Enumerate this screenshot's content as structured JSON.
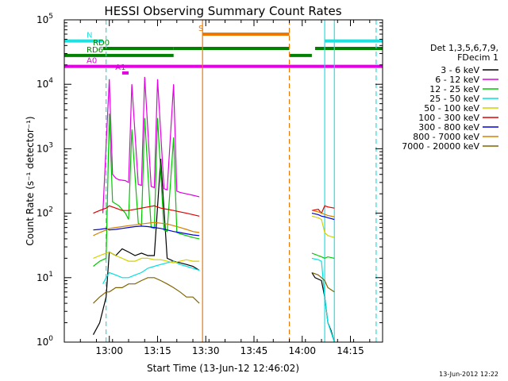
{
  "chart_data": {
    "type": "line",
    "title": "HESSI Observing Summary Count Rates",
    "xlabel": "Start Time (13-Jun-12 12:46:02)",
    "ylabel": "Count Rate (s⁻¹ detector⁻¹)",
    "xlim": [
      "12:46",
      "14:25"
    ],
    "ylim": [
      1,
      100000
    ],
    "yscale": "log",
    "grid": false,
    "x_ticks": [
      "13:00",
      "13:15",
      "13:30",
      "13:45",
      "14:00",
      "14:15"
    ],
    "y_ticks": [
      {
        "base": "10",
        "exp": "0",
        "value": 1
      },
      {
        "base": "10",
        "exp": "1",
        "value": 10
      },
      {
        "base": "10",
        "exp": "2",
        "value": 100
      },
      {
        "base": "10",
        "exp": "3",
        "value": 1000
      },
      {
        "base": "10",
        "exp": "4",
        "value": 10000
      },
      {
        "base": "10",
        "exp": "5",
        "value": 100000
      }
    ],
    "legend_position": "right",
    "legend_header": [
      "Det 1,3,5,6,7,9,",
      "FDecim 1"
    ],
    "series": [
      {
        "name": "3 - 6 keV",
        "color": "#000000",
        "x": [
          "12:55",
          "12:57",
          "12:59",
          "13:00",
          "13:02",
          "13:04",
          "13:06",
          "13:08",
          "13:10",
          "13:12",
          "13:14",
          "13:16",
          "13:18",
          "13:20",
          "13:22",
          "13:24",
          "13:26",
          "13:28",
          "14:03",
          "14:04",
          "14:06",
          "14:07",
          "14:08",
          "14:09",
          "14:10"
        ],
        "y": [
          1.3,
          2,
          5,
          25,
          22,
          28,
          25,
          22,
          24,
          22,
          22,
          700,
          20,
          18,
          17,
          16,
          15,
          13,
          12,
          10,
          9,
          5,
          2,
          1.5,
          1
        ]
      },
      {
        "name": "6 - 12 keV",
        "color": "#e000e0",
        "x": [
          "12:58",
          "13:00",
          "13:01",
          "13:02",
          "13:03",
          "13:05",
          "13:06",
          "13:07",
          "13:09",
          "13:10",
          "13:11",
          "13:13",
          "13:14",
          "13:15",
          "13:17",
          "13:18",
          "13:20",
          "13:21",
          "13:22",
          "13:24",
          "13:26",
          "13:28"
        ],
        "y": [
          100,
          12000,
          400,
          350,
          330,
          320,
          300,
          10000,
          280,
          270,
          13000,
          260,
          250,
          12000,
          240,
          230,
          10000,
          220,
          210,
          200,
          190,
          180
        ]
      },
      {
        "name": "12 - 25 keV",
        "color": "#00c800",
        "x": [
          "12:55",
          "12:57",
          "12:59",
          "13:00",
          "13:01",
          "13:03",
          "13:05",
          "13:06",
          "13:07",
          "13:09",
          "13:10",
          "13:11",
          "13:13",
          "13:14",
          "13:15",
          "13:17",
          "13:18",
          "13:20",
          "13:21",
          "13:22",
          "13:24",
          "13:26",
          "13:28",
          "14:03",
          "14:05",
          "14:06",
          "14:07",
          "14:08",
          "14:10"
        ],
        "y": [
          15,
          18,
          20,
          3500,
          150,
          130,
          100,
          80,
          2000,
          70,
          65,
          3000,
          60,
          58,
          3000,
          55,
          52,
          1500,
          50,
          48,
          45,
          42,
          40,
          24,
          22,
          21,
          20,
          21,
          20
        ]
      },
      {
        "name": "25 - 50 keV",
        "color": "#00e0e0",
        "x": [
          "12:58",
          "12:59",
          "13:00",
          "13:02",
          "13:04",
          "13:06",
          "13:08",
          "13:10",
          "13:12",
          "13:14",
          "13:16",
          "13:18",
          "13:20",
          "13:22",
          "13:24",
          "13:26",
          "13:28",
          "14:03",
          "14:05",
          "14:06",
          "14:07",
          "14:08",
          "14:10"
        ],
        "y": [
          8,
          10,
          12,
          11,
          10,
          10,
          11,
          12,
          14,
          15,
          16,
          17,
          18,
          16,
          15,
          14,
          13,
          20,
          19,
          18,
          5,
          2,
          1
        ]
      },
      {
        "name": "50 - 100 keV",
        "color": "#d2d200",
        "x": [
          "12:55",
          "12:57",
          "12:59",
          "13:00",
          "13:02",
          "13:04",
          "13:06",
          "13:08",
          "13:10",
          "13:12",
          "13:14",
          "13:16",
          "13:18",
          "13:20",
          "13:22",
          "13:24",
          "13:26",
          "13:28",
          "14:03",
          "14:05",
          "14:06",
          "14:07",
          "14:08",
          "14:10"
        ],
        "y": [
          20,
          22,
          24,
          25,
          22,
          20,
          18,
          18,
          20,
          20,
          19,
          19,
          18,
          17,
          18,
          19,
          18,
          18,
          90,
          85,
          80,
          50,
          45,
          42
        ]
      },
      {
        "name": "100 - 300 keV",
        "color": "#e00000",
        "x": [
          "12:55",
          "12:57",
          "12:59",
          "13:00",
          "13:02",
          "13:04",
          "13:06",
          "13:08",
          "13:10",
          "13:12",
          "13:14",
          "13:16",
          "13:18",
          "13:20",
          "13:22",
          "13:24",
          "13:26",
          "13:28",
          "14:03",
          "14:05",
          "14:06",
          "14:07",
          "14:08",
          "14:10"
        ],
        "y": [
          100,
          110,
          120,
          130,
          120,
          110,
          110,
          115,
          120,
          125,
          130,
          120,
          115,
          110,
          105,
          100,
          95,
          90,
          110,
          115,
          100,
          130,
          125,
          120
        ]
      },
      {
        "name": "300 - 800 keV",
        "color": "#0000e0",
        "x": [
          "12:55",
          "12:57",
          "12:59",
          "13:00",
          "13:02",
          "13:04",
          "13:06",
          "13:08",
          "13:10",
          "13:12",
          "13:14",
          "13:16",
          "13:18",
          "13:20",
          "13:22",
          "13:24",
          "13:26",
          "13:28",
          "14:03",
          "14:05",
          "14:06",
          "14:07",
          "14:08",
          "14:10"
        ],
        "y": [
          55,
          56,
          58,
          55,
          56,
          58,
          60,
          62,
          63,
          62,
          60,
          58,
          55,
          52,
          50,
          48,
          46,
          45,
          100,
          95,
          90,
          88,
          85,
          80
        ]
      },
      {
        "name": "800 - 7000 keV",
        "color": "#d28200",
        "x": [
          "12:55",
          "12:57",
          "12:59",
          "13:00",
          "13:02",
          "13:04",
          "13:06",
          "13:08",
          "13:10",
          "13:12",
          "13:14",
          "13:16",
          "13:18",
          "13:20",
          "13:22",
          "13:24",
          "13:26",
          "13:28",
          "14:03",
          "14:05",
          "14:06",
          "14:07",
          "14:08",
          "14:10"
        ],
        "y": [
          45,
          50,
          55,
          58,
          60,
          62,
          64,
          66,
          68,
          70,
          72,
          70,
          68,
          64,
          60,
          56,
          52,
          50,
          110,
          105,
          100,
          96,
          92,
          88
        ]
      },
      {
        "name": "7000 - 20000 keV",
        "color": "#826400",
        "x": [
          "12:55",
          "12:57",
          "12:59",
          "13:00",
          "13:02",
          "13:04",
          "13:06",
          "13:08",
          "13:10",
          "13:12",
          "13:14",
          "13:16",
          "13:18",
          "13:20",
          "13:22",
          "13:24",
          "13:26",
          "13:28",
          "14:03",
          "14:05",
          "14:06",
          "14:07",
          "14:08",
          "14:10"
        ],
        "y": [
          4,
          5,
          6,
          6,
          7,
          7,
          8,
          8,
          9,
          10,
          10,
          9,
          8,
          7,
          6,
          5,
          5,
          4,
          12,
          11,
          10,
          9,
          7,
          6
        ]
      }
    ],
    "flags": [
      {
        "label": "S",
        "color": "#f07800",
        "x_start": "13:29",
        "x_end": "13:56",
        "y": 60000
      },
      {
        "label": "N",
        "color": "#20e0e0",
        "x_start": "12:46",
        "x_end": "12:58",
        "y": 47000
      },
      {
        "label": "",
        "color": "#20e0e0",
        "x_start": "14:07",
        "x_end": "14:25",
        "y": 47000
      },
      {
        "label": "RD0",
        "color": "#008200",
        "x_start": "12:58",
        "x_end": "13:20",
        "y": 36000
      },
      {
        "label": "",
        "color": "#008200",
        "x_start": "13:20",
        "x_end": "13:56",
        "y": 36000
      },
      {
        "label": "",
        "color": "#008200",
        "x_start": "14:04",
        "x_end": "14:25",
        "y": 36000
      },
      {
        "label": "RD6",
        "color": "#008200",
        "x_start": "12:46",
        "x_end": "13:20",
        "y": 28000
      },
      {
        "label": "",
        "color": "#008200",
        "x_start": "13:56",
        "x_end": "14:03",
        "y": 28000
      },
      {
        "label": "A0",
        "color": "#e000e0",
        "x_start": "12:46",
        "x_end": "14:25",
        "y": 19000
      },
      {
        "label": "A1",
        "color": "#e000e0",
        "x_start": "13:04",
        "x_end": "13:06",
        "y": 15000
      }
    ],
    "vertical_markers": [
      {
        "x": "12:59",
        "color": "#20e0e0",
        "style": "dashed"
      },
      {
        "x": "13:29",
        "color": "#f07800",
        "style": "solid"
      },
      {
        "x": "13:56",
        "color": "#f07800",
        "style": "dashed"
      },
      {
        "x": "14:07",
        "color": "#20e0e0",
        "style": "solid"
      },
      {
        "x": "14:10",
        "color": "#20e0e0",
        "style": "solid"
      },
      {
        "x": "14:23",
        "color": "#20e0e0",
        "style": "dashed"
      }
    ],
    "timestamp": "13-Jun-2012 12:22"
  }
}
